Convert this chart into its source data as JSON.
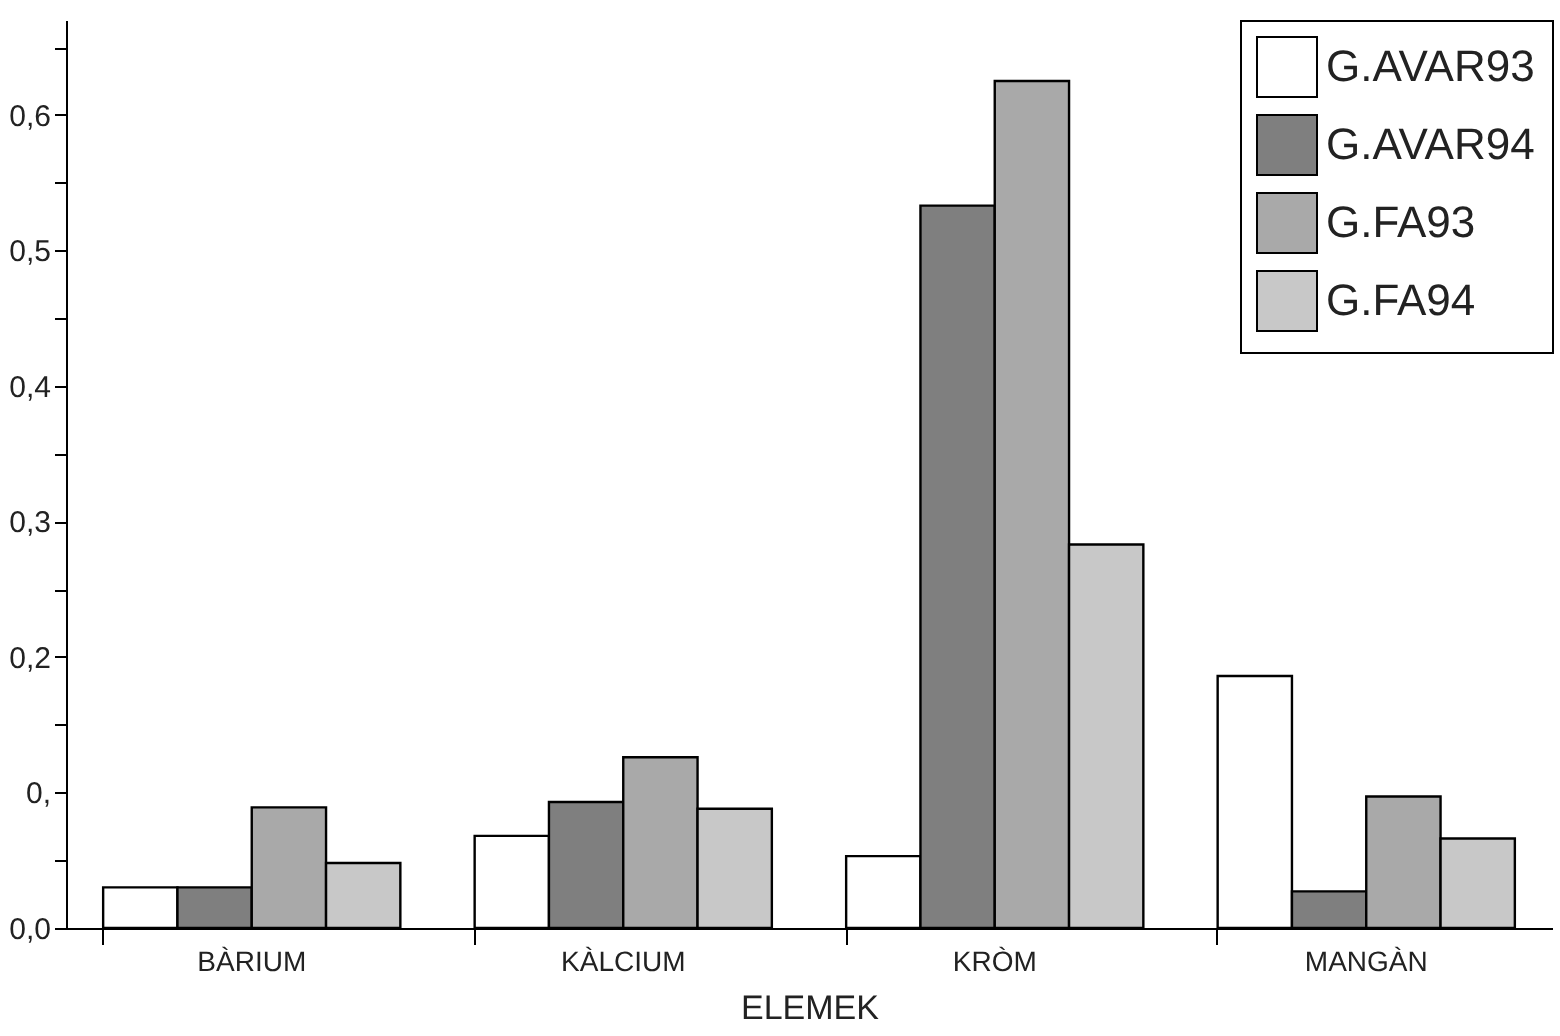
{
  "chart_data": {
    "type": "bar",
    "xlabel": "ELEMEK",
    "categories": [
      "BÀRIUM",
      "KÀLCIUM",
      "KRÒM",
      "MANGÀN"
    ],
    "series": [
      {
        "name": "G.AVAR93",
        "color": "#ffffff",
        "values": [
          0.03,
          0.068,
          0.053,
          0.186
        ]
      },
      {
        "name": "G.AVAR94",
        "color": "#7f7f7f",
        "values": [
          0.03,
          0.093,
          0.533,
          0.027
        ]
      },
      {
        "name": "G.FA93",
        "color": "#a9a9a9",
        "values": [
          0.089,
          0.126,
          0.625,
          0.097
        ]
      },
      {
        "name": "G.FA94",
        "color": "#c8c8c8",
        "values": [
          0.048,
          0.088,
          0.283,
          0.066
        ]
      }
    ],
    "ylim": [
      0,
      0.67
    ],
    "yticks": [
      {
        "value": 0,
        "label": "0,0"
      },
      {
        "value": 0.05,
        "label": null
      },
      {
        "value": 0.1,
        "label": "0,"
      },
      {
        "value": 0.15,
        "label": null
      },
      {
        "value": 0.2,
        "label": "0,2"
      },
      {
        "value": 0.25,
        "label": null
      },
      {
        "value": 0.3,
        "label": "0,3"
      },
      {
        "value": 0.35,
        "label": null
      },
      {
        "value": 0.4,
        "label": "0,4"
      },
      {
        "value": 0.45,
        "label": null
      },
      {
        "value": 0.5,
        "label": "0,5"
      },
      {
        "value": 0.55,
        "label": null
      },
      {
        "value": 0.6,
        "label": "0,6"
      },
      {
        "value": 0.65,
        "label": null
      }
    ],
    "legend": "top right",
    "grid": false
  }
}
